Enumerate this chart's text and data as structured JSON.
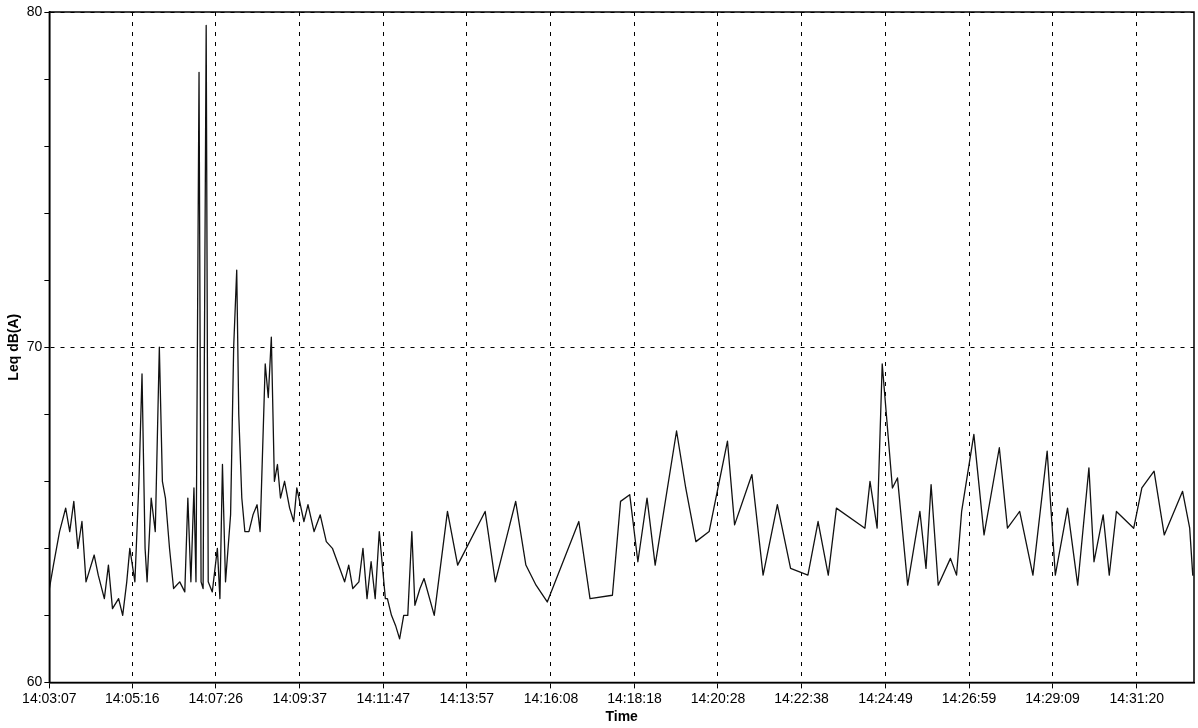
{
  "chart_data": {
    "type": "line",
    "xlabel": "Time",
    "ylabel": "Leq dB(A)",
    "color": "#111111",
    "xlim": [
      14.05194,
      14.547
    ],
    "ylim": [
      60,
      80
    ],
    "xticks": [
      {
        "value": 14.05194,
        "label": "14:03:07"
      },
      {
        "value": 14.08778,
        "label": "14:05:16"
      },
      {
        "value": 14.12389,
        "label": "14:07:26"
      },
      {
        "value": 14.16028,
        "label": "14:09:37"
      },
      {
        "value": 14.19639,
        "label": "14:11:47"
      },
      {
        "value": 14.2325,
        "label": "14:13:57"
      },
      {
        "value": 14.26889,
        "label": "14:16:08"
      },
      {
        "value": 14.305,
        "label": "14:18:18"
      },
      {
        "value": 14.34111,
        "label": "14:20:28"
      },
      {
        "value": 14.37722,
        "label": "14:22:38"
      },
      {
        "value": 14.41361,
        "label": "14:24:49"
      },
      {
        "value": 14.44972,
        "label": "14:26:59"
      },
      {
        "value": 14.48583,
        "label": "14:29:09"
      },
      {
        "value": 14.52222,
        "label": "14:31:20"
      }
    ],
    "yticks": [
      60,
      {
        "value": 62,
        "label": null
      },
      {
        "value": 64,
        "label": null
      },
      {
        "value": 66,
        "label": null
      },
      {
        "value": 68,
        "label": null
      },
      70,
      {
        "value": 72,
        "label": null
      },
      {
        "value": 74,
        "label": null
      },
      {
        "value": 76,
        "label": null
      },
      {
        "value": 78,
        "label": null
      },
      80
    ],
    "grid": true,
    "legend": false,
    "marker": "none",
    "line_style": "solid",
    "x": [
      14.05194,
      14.0537,
      14.05634,
      14.05899,
      14.06075,
      14.06251,
      14.06427,
      14.06603,
      14.06779,
      14.07132,
      14.07308,
      14.07572,
      14.07748,
      14.07924,
      14.08188,
      14.08365,
      14.08541,
      14.08673,
      14.08893,
      14.09069,
      14.09201,
      14.09333,
      14.09421,
      14.09598,
      14.09774,
      14.0995,
      14.10082,
      14.10214,
      14.1039,
      14.10566,
      14.10831,
      14.11051,
      14.11183,
      14.11315,
      14.11447,
      14.11535,
      14.11667,
      14.11755,
      14.11843,
      14.11976,
      14.12064,
      14.1224,
      14.1246,
      14.1257,
      14.1268,
      14.12812,
      14.13032,
      14.13165,
      14.13297,
      14.13385,
      14.13517,
      14.13649,
      14.13825,
      14.14001,
      14.14177,
      14.14309,
      14.1453,
      14.14662,
      14.14794,
      14.14926,
      14.15058,
      14.1519,
      14.15366,
      14.15586,
      14.15763,
      14.15895,
      14.16203,
      14.16379,
      14.16643,
      14.16908,
      14.17172,
      14.17436,
      14.177,
      14.17964,
      14.18141,
      14.18317,
      14.18581,
      14.18757,
      14.18933,
      14.19109,
      14.19286,
      14.19462,
      14.19726,
      14.19814,
      14.1999,
      14.20166,
      14.20342,
      14.20519,
      14.20695,
      14.20871,
      14.21003,
      14.21223,
      14.21399,
      14.2184,
      14.22412,
      14.22852,
      14.24041,
      14.24482,
      14.25362,
      14.25803,
      14.26243,
      14.26728,
      14.28093,
      14.28577,
      14.29546,
      14.29898,
      14.30295,
      14.30647,
      14.31043,
      14.31395,
      14.3232,
      14.32717,
      14.33157,
      14.33729,
      14.34522,
      14.3483,
      14.35579,
      14.36063,
      14.3668,
      14.37252,
      14.38001,
      14.38441,
      14.38882,
      14.39234,
      14.40467,
      14.40687,
      14.40995,
      14.41215,
      14.41656,
      14.41876,
      14.42316,
      14.42845,
      14.43109,
      14.43329,
      14.43637,
      14.44166,
      14.4443,
      14.4465,
      14.45179,
      14.45619,
      14.4628,
      14.46632,
      14.4716,
      14.47733,
      14.48349,
      14.48702,
      14.4923,
      14.4967,
      14.50155,
      14.50375,
      14.50771,
      14.51035,
      14.51344,
      14.52092,
      14.52445,
      14.52973,
      14.53413,
      14.54206,
      14.54514,
      14.54646
    ],
    "values": [
      62.8,
      63.5,
      64.5,
      65.2,
      64.5,
      65.4,
      64,
      64.8,
      63,
      63.8,
      63.2,
      62.5,
      63.5,
      62.2,
      62.5,
      62,
      63,
      64,
      63,
      66,
      69.2,
      64,
      63,
      65.5,
      64.5,
      70,
      66,
      65.5,
      64,
      62.8,
      63,
      62.7,
      65.5,
      63,
      65.8,
      63,
      78.2,
      63,
      62.8,
      79.6,
      63,
      62.7,
      64,
      62.5,
      66.5,
      63,
      65,
      70,
      72.3,
      68,
      65.5,
      64.5,
      64.5,
      65,
      65.3,
      64.5,
      69.5,
      68.5,
      70.3,
      66,
      66.5,
      65.5,
      66,
      65.2,
      64.8,
      65.8,
      64.8,
      65.3,
      64.5,
      65,
      64.2,
      64,
      63.5,
      63,
      63.5,
      62.8,
      63,
      64,
      62.5,
      63.6,
      62.5,
      64.5,
      62.5,
      62.5,
      62,
      61.7,
      61.3,
      62,
      62,
      64.5,
      62.3,
      62.8,
      63.1,
      62,
      65.1,
      63.5,
      65.1,
      63,
      65.4,
      63.5,
      62.9,
      62.4,
      64.8,
      62.5,
      62.6,
      65.4,
      65.6,
      63.6,
      65.5,
      63.5,
      67.5,
      65.8,
      64.2,
      64.5,
      67.2,
      64.7,
      66.2,
      63.2,
      65.3,
      63.4,
      63.2,
      64.8,
      63.2,
      65.2,
      64.6,
      66,
      64.6,
      69.5,
      65.8,
      66.1,
      62.9,
      65.1,
      63.4,
      65.9,
      62.9,
      63.7,
      63.2,
      65.1,
      67.4,
      64.4,
      67,
      64.6,
      65.1,
      63.2,
      66.9,
      63.2,
      65.2,
      62.9,
      66.4,
      63.6,
      65,
      63.2,
      65.1,
      64.6,
      65.8,
      66.3,
      64.4,
      65.7,
      64.6,
      63.2
    ]
  }
}
